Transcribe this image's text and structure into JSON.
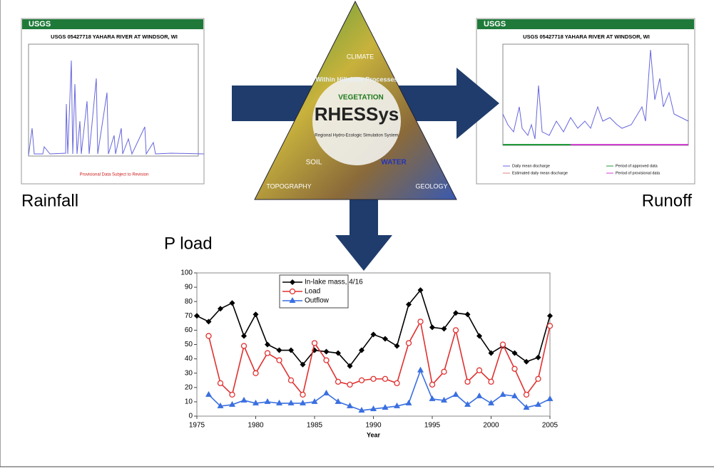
{
  "labels": {
    "rainfall": "Rainfall",
    "runoff": "Runoff",
    "pload": "P load"
  },
  "left_panel": {
    "logo": "USGS",
    "title": "USGS 05427718 YAHARA RIVER AT WINDSOR, WI",
    "note": "Provisional Data Subject to Revision"
  },
  "right_panel": {
    "logo": "USGS",
    "title": "USGS 05427718 YAHARA RIVER AT WINDSOR, WI",
    "legend": [
      "Daily mean discharge",
      "Estimated daily mean discharge",
      "Period of approved data",
      "Period of provisional data"
    ]
  },
  "triangle": {
    "name": "RHESSys",
    "subtitle": "Regional Hydro-Ecologic Simulation System",
    "arc": "Within Hillslope Processes",
    "corners": [
      "CLIMATE",
      "VEGETATION",
      "SOIL",
      "WATER",
      "TOPOGRAPHY",
      "GEOLOGY"
    ]
  },
  "chart_data": {
    "type": "line",
    "xlabel": "Year",
    "x": [
      1975,
      1976,
      1977,
      1978,
      1979,
      1980,
      1981,
      1982,
      1983,
      1984,
      1985,
      1986,
      1987,
      1988,
      1989,
      1990,
      1991,
      1992,
      1993,
      1994,
      1995,
      1996,
      1997,
      1998,
      1999,
      2000,
      2001,
      2002,
      2003,
      2004,
      2005
    ],
    "series": [
      {
        "name": "In-lake mass, 4/16",
        "color": "#000000",
        "marker": "diamond",
        "values": [
          70,
          66,
          75,
          79,
          56,
          71,
          50,
          46,
          46,
          36,
          46,
          45,
          44,
          35,
          46,
          57,
          54,
          49,
          78,
          88,
          62,
          61,
          72,
          71,
          56,
          44,
          49,
          44,
          38,
          41,
          70
        ]
      },
      {
        "name": "Load",
        "color": "#e03030",
        "marker": "circle",
        "values": [
          null,
          56,
          23,
          15,
          49,
          30,
          44,
          39,
          25,
          15,
          51,
          39,
          24,
          22,
          25,
          26,
          26,
          23,
          51,
          66,
          22,
          31,
          60,
          24,
          32,
          24,
          50,
          33,
          15,
          26,
          63
        ]
      },
      {
        "name": "Outflow",
        "color": "#3a6fe0",
        "marker": "triangle",
        "values": [
          null,
          15,
          7,
          8,
          11,
          9,
          10,
          9,
          9,
          9,
          10,
          16,
          10,
          7,
          4,
          5,
          6,
          7,
          9,
          32,
          12,
          11,
          15,
          8,
          14,
          9,
          15,
          14,
          6,
          8,
          12
        ]
      }
    ],
    "xlim": [
      1975,
      2005
    ],
    "xticks": [
      1975,
      1980,
      1985,
      1990,
      1995,
      2000,
      2005
    ],
    "ylim": [
      0,
      100
    ],
    "yticks": [
      0,
      10,
      20,
      30,
      40,
      50,
      60,
      70,
      80,
      90,
      100
    ]
  }
}
